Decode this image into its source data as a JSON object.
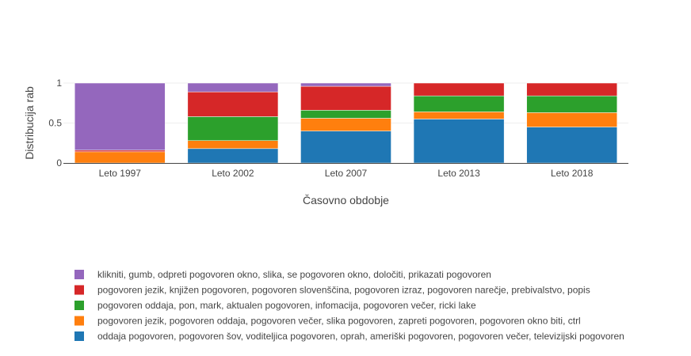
{
  "chart_data": {
    "type": "bar",
    "stacked": true,
    "categories": [
      "Leto 1997",
      "Leto 2002",
      "Leto 2007",
      "Leto 2013",
      "Leto 2018"
    ],
    "xlabel": "Časovno obdobje",
    "ylabel": "Distribucija rab",
    "ylim": [
      0,
      1
    ],
    "yticks": [
      "0",
      "0.5",
      "1"
    ],
    "ytick_values": [
      0,
      0.5,
      1
    ],
    "grid": true,
    "legend_position": "bottom-left",
    "series": [
      {
        "name": "oddaja pogovoren, pogovoren šov, voditeljica pogovoren, oprah, ameriški pogovoren, pogovoren večer, televizijski pogovoren",
        "color": "#1f77b4",
        "values": [
          0.0,
          0.18,
          0.4,
          0.55,
          0.45
        ]
      },
      {
        "name": "pogovoren jezik, pogovoren oddaja, pogovoren večer, slika pogovoren, zapreti pogovoren, pogovoren okno biti, ctrl",
        "color": "#ff7f0e",
        "values": [
          0.14,
          0.1,
          0.16,
          0.09,
          0.18
        ]
      },
      {
        "name": "pogovoren oddaja, pon, mark, aktualen pogovoren, infomacija, pogovoren večer, ricki lake",
        "color": "#2ca02c",
        "values": [
          0.0,
          0.3,
          0.1,
          0.2,
          0.21
        ]
      },
      {
        "name": "pogovoren jezik, knjižen pogovoren, pogovoren slovenščina, pogovoren izraz, pogovoren narečje, prebivalstvo, popis",
        "color": "#d62728",
        "values": [
          0.02,
          0.31,
          0.3,
          0.16,
          0.16
        ]
      },
      {
        "name": "klikniti, gumb, odpreti pogovoren okno, slika, se pogovoren okno, določiti, prikazati pogovoren",
        "color": "#9467bd",
        "values": [
          0.84,
          0.11,
          0.04,
          0.0,
          0.0
        ]
      }
    ]
  }
}
